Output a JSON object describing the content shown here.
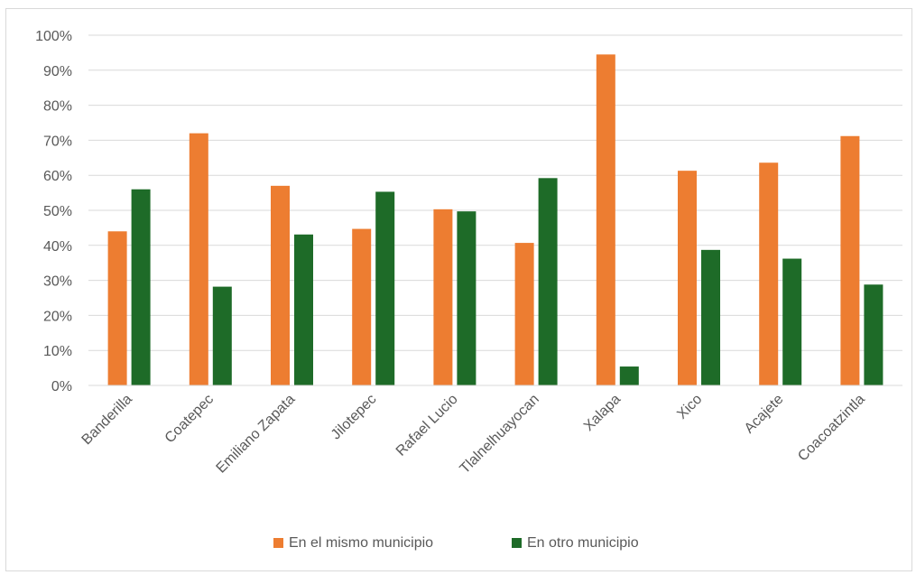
{
  "chart_data": {
    "type": "bar",
    "categories": [
      "Banderilla",
      "Coatepec",
      "Emiliano Zapata",
      "Jilotepec",
      "Rafael Lucio",
      "Tlalnelhuayocan",
      "Xalapa",
      "Xico",
      "Acajete",
      "Coacoatzintla"
    ],
    "series": [
      {
        "name": "En el mismo municipio",
        "color": "#ed7d31",
        "values": [
          44,
          72,
          57,
          44.7,
          50.3,
          40.7,
          94.5,
          61.3,
          63.6,
          71.2
        ]
      },
      {
        "name": "En otro municipio",
        "color": "#1e6b28",
        "values": [
          56,
          28.2,
          43.1,
          55.3,
          49.7,
          59.2,
          5.4,
          38.7,
          36.2,
          28.8
        ]
      }
    ],
    "yticks": [
      "0%",
      "10%",
      "20%",
      "30%",
      "40%",
      "50%",
      "60%",
      "70%",
      "80%",
      "90%",
      "100%"
    ],
    "ylim": [
      0,
      100
    ],
    "title": "",
    "xlabel": "",
    "ylabel": "",
    "grid": true,
    "legend": "bottom"
  }
}
